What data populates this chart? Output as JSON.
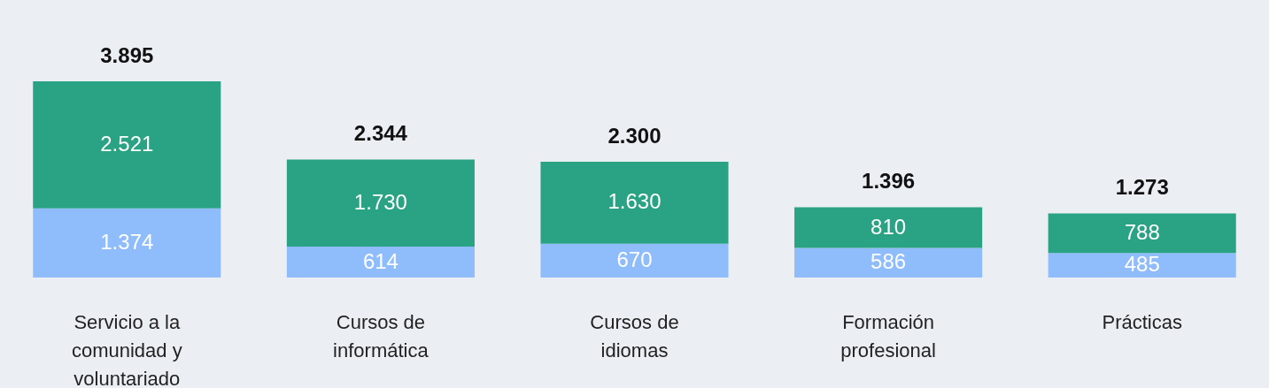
{
  "chart_data": {
    "type": "bar",
    "stacked": true,
    "categories": [
      "Servicio a la comunidad y voluntariado",
      "Cursos de informática",
      "Cursos de idiomas",
      "Formación profesional",
      "Prácticas"
    ],
    "series": [
      {
        "color": "#8fbcfb",
        "values": [
          1374,
          614,
          670,
          586,
          485
        ],
        "value_labels": [
          "1.374",
          "614",
          "670",
          "586",
          "485"
        ]
      },
      {
        "color": "#29a384",
        "values": [
          2521,
          1730,
          1630,
          810,
          788
        ],
        "value_labels": [
          "2.521",
          "1.730",
          "1.630",
          "810",
          "788"
        ]
      }
    ],
    "totals": [
      "3.895",
      "2.344",
      "2.300",
      "1.396",
      "1.273"
    ],
    "grid": false
  }
}
